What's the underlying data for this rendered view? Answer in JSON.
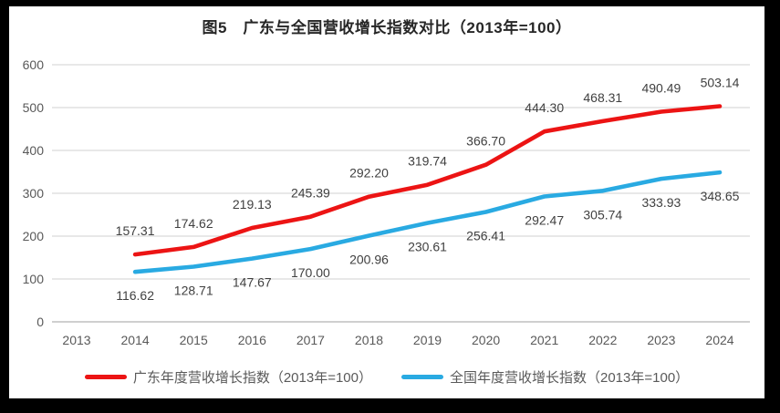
{
  "chart_data": {
    "type": "line",
    "title": "图5　广东与全国营收增长指数对比（2013年=100）",
    "x": [
      2013,
      2014,
      2015,
      2016,
      2017,
      2018,
      2019,
      2020,
      2021,
      2022,
      2023,
      2024
    ],
    "series": [
      {
        "name": "广东年度营收增长指数（2013年=100）",
        "color_key": "guangdong",
        "label_position": "above",
        "values": [
          null,
          157.31,
          174.62,
          219.13,
          245.39,
          292.2,
          319.74,
          366.7,
          444.3,
          468.31,
          490.49,
          503.14
        ]
      },
      {
        "name": "全国年度营收增长指数（2013年=100）",
        "color_key": "national",
        "label_position": "below",
        "values": [
          null,
          116.62,
          128.71,
          147.67,
          170.0,
          200.96,
          230.61,
          256.41,
          292.47,
          305.74,
          333.93,
          348.65
        ]
      }
    ],
    "ylim": [
      0,
      600
    ],
    "ytick_step": 100,
    "yticks": [
      0,
      100,
      200,
      300,
      400,
      500,
      600
    ],
    "grid": true,
    "legend_position": "bottom",
    "value_decimals": 2
  },
  "colors": {
    "guangdong": "#EC1414",
    "national": "#29AAE2",
    "gridline": "#D9D9D9",
    "axis_line": "#BFBFBF",
    "tick_text": "#595959",
    "data_label_text": "#404040",
    "title_text": "#262626",
    "frame": "#000000",
    "background": "#FFFFFF"
  }
}
